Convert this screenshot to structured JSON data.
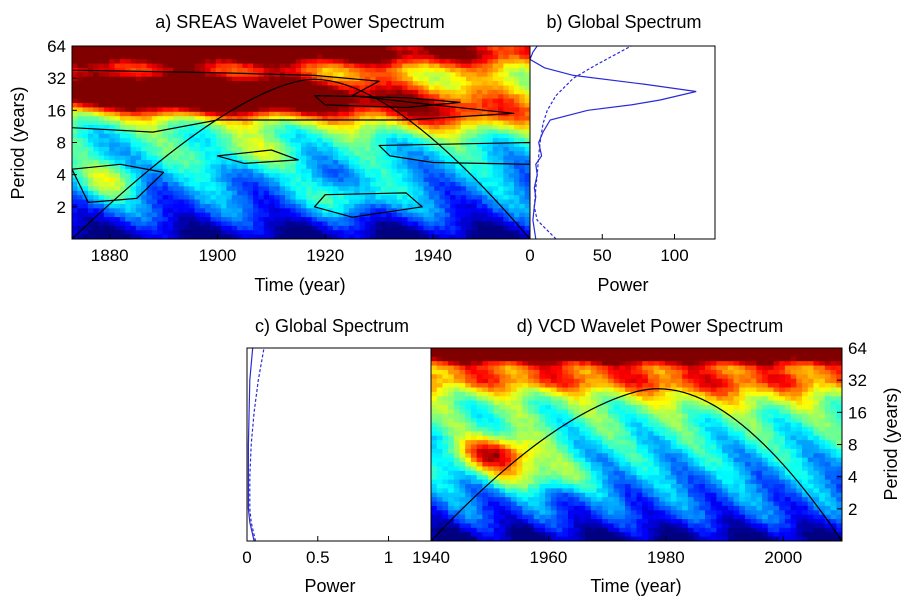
{
  "chart_data": [
    {
      "type": "heatmap",
      "id": "a",
      "title": "a) SREAS Wavelet Power Spectrum",
      "xlabel": "Time (year)",
      "ylabel": "Period (years)",
      "xlim": [
        1873,
        1958
      ],
      "ylim_log2": [
        0,
        6
      ],
      "x_ticks": [
        1880,
        1900,
        1920,
        1940
      ],
      "y_ticks": [
        2,
        4,
        8,
        16,
        32,
        64
      ],
      "color_scale": "jet",
      "high_power_bands": [
        {
          "x": [
            1873,
            1930
          ],
          "period": [
            16,
            38
          ],
          "level": "dark red"
        },
        {
          "x": [
            1873,
            1958
          ],
          "period": [
            40,
            64
          ],
          "level": "red-orange"
        }
      ],
      "cone_of_influence": {
        "x": [
          1873,
          1900,
          1915,
          1930,
          1958
        ],
        "period": [
          1,
          20,
          30,
          20,
          1
        ]
      }
    },
    {
      "type": "line",
      "id": "b",
      "title": "b) Global Spectrum",
      "xlabel": "Power",
      "xlim": [
        0,
        128
      ],
      "x_ticks": [
        0,
        50,
        100
      ],
      "series": [
        {
          "style": "solid",
          "color": "#2a2ad8",
          "points": [
            [
              4,
              1
            ],
            [
              2,
              1.5
            ],
            [
              3,
              2
            ],
            [
              4,
              2.5
            ],
            [
              3,
              3
            ],
            [
              5,
              4
            ],
            [
              4,
              5
            ],
            [
              8,
              6
            ],
            [
              6,
              8
            ],
            [
              9,
              10
            ],
            [
              14,
              13
            ],
            [
              40,
              16
            ],
            [
              70,
              18
            ],
            [
              90,
              20
            ],
            [
              115,
              24
            ],
            [
              80,
              28
            ],
            [
              30,
              34
            ],
            [
              10,
              40
            ],
            [
              0,
              48
            ],
            [
              2,
              56
            ],
            [
              5,
              64
            ]
          ]
        },
        {
          "style": "dashed",
          "color": "#2a2ad8",
          "points": [
            [
              18,
              1
            ],
            [
              5,
              1.5
            ],
            [
              3,
              2
            ],
            [
              4,
              3
            ],
            [
              5,
              4
            ],
            [
              6,
              6
            ],
            [
              7,
              8
            ],
            [
              9,
              12
            ],
            [
              12,
              16
            ],
            [
              18,
              22
            ],
            [
              30,
              32
            ],
            [
              45,
              42
            ],
            [
              70,
              64
            ]
          ]
        }
      ]
    },
    {
      "type": "line",
      "id": "c",
      "title": "c) Global Spectrum",
      "xlabel": "Power",
      "xlim": [
        0,
        1.3
      ],
      "x_ticks": [
        0,
        0.5,
        1
      ],
      "x_tick_labels": [
        "0",
        "0.5",
        "1"
      ],
      "series": [
        {
          "style": "dashed",
          "color": "#2a2ad8",
          "points": [
            [
              0.06,
              1
            ],
            [
              0.03,
              1.5
            ],
            [
              0.02,
              2
            ],
            [
              0.02,
              4
            ],
            [
              0.03,
              8
            ],
            [
              0.05,
              16
            ],
            [
              0.08,
              32
            ],
            [
              0.12,
              64
            ]
          ]
        },
        {
          "style": "solid",
          "color": "#2a2ad8",
          "points": [
            [
              0.05,
              1
            ],
            [
              0.02,
              1.5
            ],
            [
              0.01,
              2
            ],
            [
              0.01,
              8
            ],
            [
              0.02,
              32
            ],
            [
              0.04,
              64
            ]
          ]
        }
      ]
    },
    {
      "type": "heatmap",
      "id": "d",
      "title": "d) VCD Wavelet Power Spectrum",
      "xlabel": "Time (year)",
      "ylabel": "Period (years)",
      "xlim": [
        1940,
        2010
      ],
      "ylim_log2": [
        0,
        6
      ],
      "x_ticks": [
        1940,
        1960,
        1980,
        2000
      ],
      "y_ticks": [
        2,
        4,
        8,
        16,
        32,
        64
      ],
      "color_scale": "jet",
      "high_power_bands": [
        {
          "x": [
            1940,
            2010
          ],
          "period": [
            40,
            64
          ],
          "level": "dark red"
        },
        {
          "x": [
            1945,
            1958
          ],
          "period": [
            5,
            9
          ],
          "level": "orange"
        }
      ],
      "cone_of_influence": {
        "x": [
          1940,
          1960,
          1975,
          1990,
          2010
        ],
        "period": [
          1,
          15,
          25,
          15,
          1
        ]
      }
    }
  ]
}
